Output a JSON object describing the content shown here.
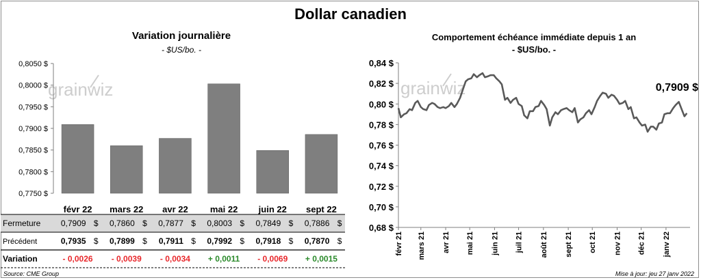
{
  "title": "Dollar canadien",
  "colors": {
    "bar": "#7f7f7f",
    "line": "#595959",
    "negative": "#e8282c",
    "positive": "#2b8a2b",
    "row_fill": "#d9d9d9"
  },
  "watermark": "grainwiz",
  "left_panel": {
    "title": "Variation  journalière",
    "unit": "- $US/bo. -",
    "chart_data": {
      "type": "bar",
      "categories": [
        "févr 22",
        "mars 22",
        "avr 22",
        "mai 22",
        "juin 22",
        "sept 22"
      ],
      "values": [
        0.7909,
        0.786,
        0.7877,
        0.8003,
        0.7849,
        0.7886
      ],
      "ylim": [
        0.775,
        0.805
      ],
      "yticks": [
        "0,7750 $",
        "0,7800 $",
        "0,7850 $",
        "0,7900 $",
        "0,7950 $",
        "0,8000 $",
        "0,8050 $"
      ],
      "ytick_values": [
        0.775,
        0.78,
        0.785,
        0.79,
        0.795,
        0.8,
        0.805
      ],
      "grid": false
    },
    "table": {
      "rows": [
        {
          "label": "Fermeture",
          "values": [
            "0,7909",
            "0,7860",
            "0,7877",
            "0,8003",
            "0,7849",
            "0,7886"
          ],
          "unit": "$"
        },
        {
          "label": "Précédent",
          "values": [
            "0,7935",
            "0,7899",
            "0,7911",
            "0,7992",
            "0,7918",
            "0,7870"
          ],
          "unit": "$"
        },
        {
          "label": "Variation",
          "values": [
            "- 0,0026",
            "- 0,0039",
            "- 0,0034",
            "+ 0,0011",
            "- 0,0069",
            "+ 0,0015"
          ],
          "signs": [
            "neg",
            "neg",
            "neg",
            "pos",
            "neg",
            "pos"
          ]
        }
      ]
    }
  },
  "right_panel": {
    "title": "Comportement échéance immédiate depuis 1 an",
    "unit": "- $US/bo. -",
    "chart_data": {
      "type": "line",
      "ylim": [
        0.68,
        0.84
      ],
      "yticks": [
        "0,68 $",
        "0,70 $",
        "0,72 $",
        "0,74 $",
        "0,76 $",
        "0,78 $",
        "0,80 $",
        "0,82 $",
        "0,84 $"
      ],
      "ytick_values": [
        0.68,
        0.7,
        0.72,
        0.74,
        0.76,
        0.78,
        0.8,
        0.82,
        0.84
      ],
      "xticks": [
        "févr 21",
        "mars 21",
        "avr 21",
        "mai 21",
        "juin 21",
        "juil 21",
        "août 21",
        "sept 21",
        "oct 21",
        "nov 21",
        "déc 21",
        "janv 22"
      ],
      "x": [
        "2021-02-01",
        "2021-02-04",
        "2021-02-08",
        "2021-02-11",
        "2021-02-15",
        "2021-02-18",
        "2021-02-22",
        "2021-02-25",
        "2021-03-01",
        "2021-03-04",
        "2021-03-08",
        "2021-03-11",
        "2021-03-15",
        "2021-03-18",
        "2021-03-22",
        "2021-03-25",
        "2021-03-29",
        "2021-04-01",
        "2021-04-05",
        "2021-04-08",
        "2021-04-12",
        "2021-04-15",
        "2021-04-19",
        "2021-04-22",
        "2021-04-26",
        "2021-04-29",
        "2021-05-03",
        "2021-05-06",
        "2021-05-10",
        "2021-05-13",
        "2021-05-17",
        "2021-05-20",
        "2021-05-24",
        "2021-05-27",
        "2021-05-31",
        "2021-06-03",
        "2021-06-07",
        "2021-06-10",
        "2021-06-14",
        "2021-06-17",
        "2021-06-21",
        "2021-06-24",
        "2021-06-28",
        "2021-07-01",
        "2021-07-05",
        "2021-07-08",
        "2021-07-12",
        "2021-07-15",
        "2021-07-19",
        "2021-07-22",
        "2021-07-26",
        "2021-07-29",
        "2021-08-02",
        "2021-08-05",
        "2021-08-09",
        "2021-08-12",
        "2021-08-16",
        "2021-08-19",
        "2021-08-23",
        "2021-08-26",
        "2021-08-30",
        "2021-09-02",
        "2021-09-06",
        "2021-09-09",
        "2021-09-13",
        "2021-09-16",
        "2021-09-20",
        "2021-09-23",
        "2021-09-27",
        "2021-09-30",
        "2021-10-04",
        "2021-10-07",
        "2021-10-11",
        "2021-10-14",
        "2021-10-18",
        "2021-10-21",
        "2021-10-25",
        "2021-10-28",
        "2021-11-01",
        "2021-11-04",
        "2021-11-08",
        "2021-11-11",
        "2021-11-15",
        "2021-11-18",
        "2021-11-22",
        "2021-11-25",
        "2021-11-29",
        "2021-12-02",
        "2021-12-06",
        "2021-12-09",
        "2021-12-13",
        "2021-12-16",
        "2021-12-20",
        "2021-12-23",
        "2021-12-27",
        "2021-12-30",
        "2022-01-03",
        "2022-01-06",
        "2022-01-10",
        "2022-01-13",
        "2022-01-17",
        "2022-01-20",
        "2022-01-24",
        "2022-01-27"
      ],
      "values": [
        0.796,
        0.787,
        0.79,
        0.791,
        0.795,
        0.794,
        0.801,
        0.803,
        0.797,
        0.795,
        0.794,
        0.799,
        0.801,
        0.8,
        0.797,
        0.796,
        0.797,
        0.796,
        0.798,
        0.801,
        0.797,
        0.8,
        0.806,
        0.813,
        0.822,
        0.824,
        0.825,
        0.829,
        0.826,
        0.828,
        0.83,
        0.826,
        0.827,
        0.828,
        0.828,
        0.825,
        0.822,
        0.819,
        0.804,
        0.806,
        0.801,
        0.804,
        0.806,
        0.8,
        0.798,
        0.789,
        0.786,
        0.793,
        0.793,
        0.797,
        0.798,
        0.803,
        0.799,
        0.795,
        0.779,
        0.787,
        0.792,
        0.79,
        0.794,
        0.795,
        0.796,
        0.794,
        0.792,
        0.796,
        0.782,
        0.785,
        0.787,
        0.791,
        0.794,
        0.79,
        0.797,
        0.803,
        0.808,
        0.811,
        0.81,
        0.806,
        0.809,
        0.808,
        0.804,
        0.8,
        0.801,
        0.803,
        0.795,
        0.797,
        0.786,
        0.787,
        0.782,
        0.779,
        0.78,
        0.773,
        0.778,
        0.778,
        0.775,
        0.781,
        0.782,
        0.79,
        0.791,
        0.791,
        0.796,
        0.799,
        0.802,
        0.796,
        0.788,
        0.791
      ],
      "annotation": "0,7909 $",
      "grid": false
    }
  },
  "footer": {
    "source": "Source: CME Group",
    "updated": "Mise à jour: jeu 27 janv 2022"
  }
}
